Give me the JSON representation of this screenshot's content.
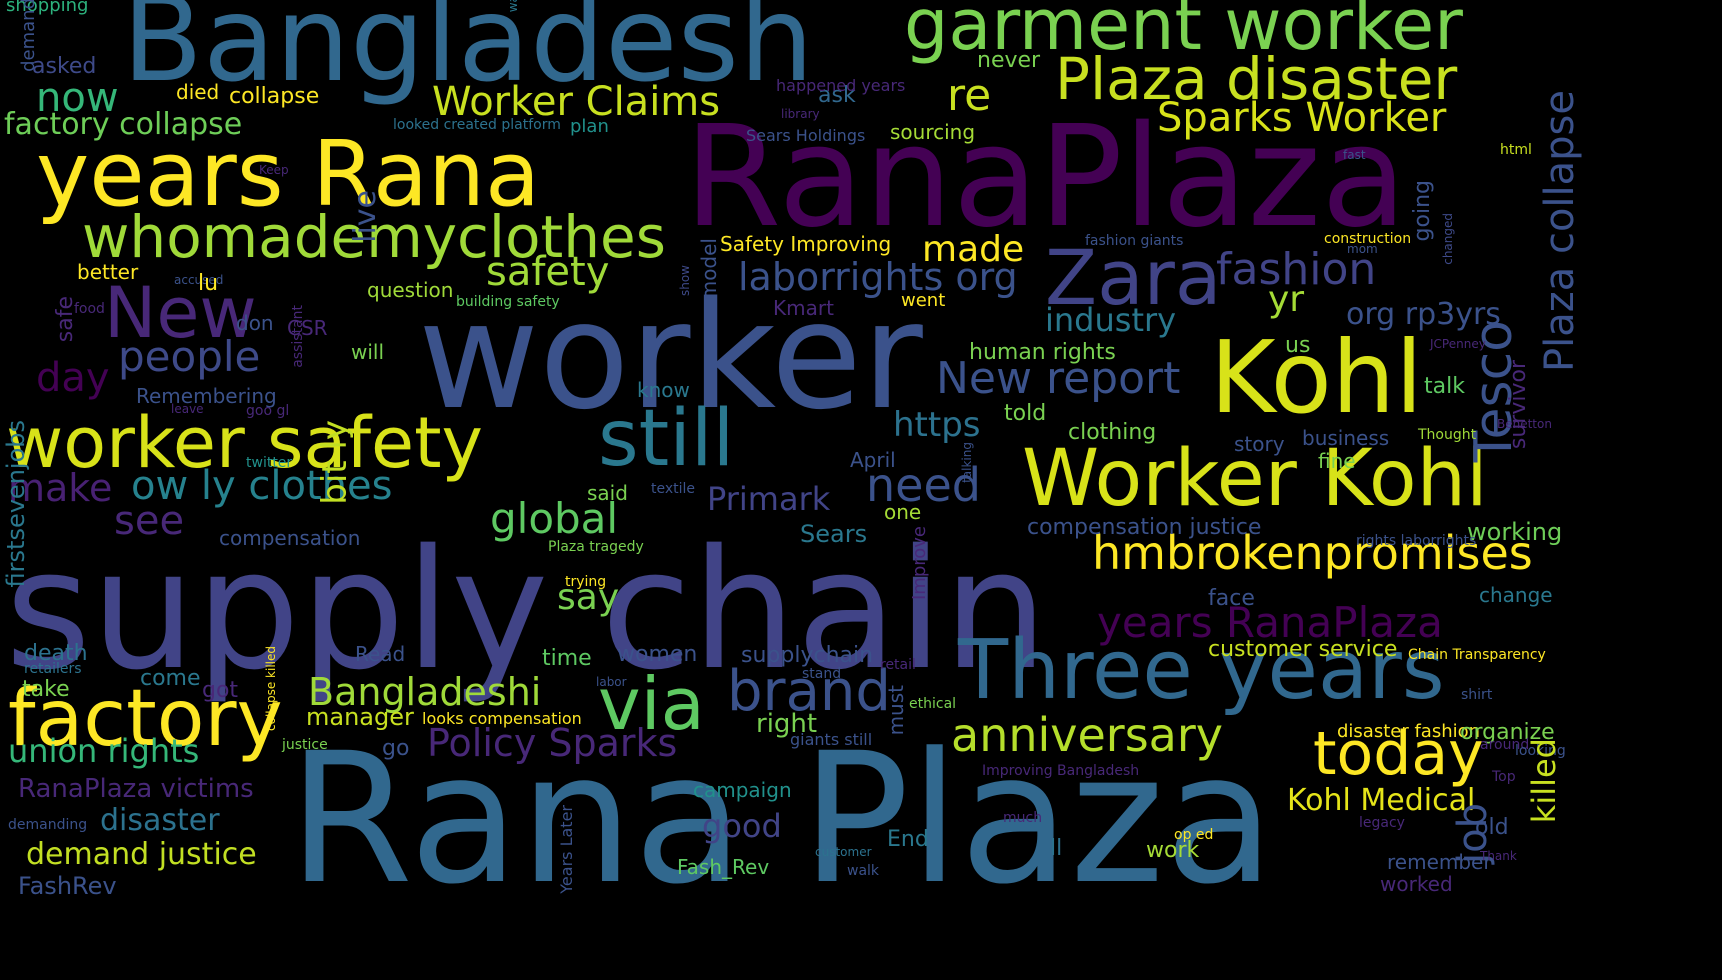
{
  "cloud": {
    "background": "#000000",
    "palette": [
      "#440154",
      "#3b528b",
      "#21908d",
      "#5dc963",
      "#fde725"
    ],
    "words": [
      {
        "text": "supply chain",
        "color": "#414487"
      },
      {
        "text": "worker",
        "color": "#3b528b"
      },
      {
        "text": "Rana Plaza",
        "color": "#31688e"
      },
      {
        "text": "RanaPlaza",
        "color": "#440154"
      },
      {
        "text": "Bangladesh",
        "color": "#31688e"
      },
      {
        "text": "years Rana",
        "color": "#fde725"
      },
      {
        "text": "Kohl",
        "color": "#d8e219"
      },
      {
        "text": "Worker Kohl",
        "color": "#d8e219"
      },
      {
        "text": "Three years",
        "color": "#31688e"
      },
      {
        "text": "garment worker",
        "color": "#7ad151"
      },
      {
        "text": "Plaza disaster",
        "color": "#c8e020"
      },
      {
        "text": "whomademyclothes",
        "color": "#a0da39"
      },
      {
        "text": "worker safety",
        "color": "#d8e219"
      },
      {
        "text": "still",
        "color": "#2a788e"
      },
      {
        "text": "Zara",
        "color": "#414487"
      },
      {
        "text": "New",
        "color": "#482878"
      },
      {
        "text": "factory",
        "color": "#fde725"
      },
      {
        "text": "via",
        "color": "#5ec962"
      },
      {
        "text": "hmbrokenpromises",
        "color": "#fde725"
      },
      {
        "text": "today",
        "color": "#fde725"
      },
      {
        "text": "anniversary",
        "color": "#b5de2b"
      },
      {
        "text": "brand",
        "color": "#3b528b"
      },
      {
        "text": "fashion",
        "color": "#414487"
      },
      {
        "text": "Tesco",
        "color": "#3b528b"
      },
      {
        "text": "Plaza collapse",
        "color": "#3b528b"
      },
      {
        "text": "Worker Claims",
        "color": "#c8e020"
      },
      {
        "text": "Sparks Worker",
        "color": "#d8e219"
      },
      {
        "text": "New report",
        "color": "#3b528b"
      },
      {
        "text": "laborrights org",
        "color": "#3b528b"
      },
      {
        "text": "safety",
        "color": "#a0da39"
      },
      {
        "text": "made",
        "color": "#fde725"
      },
      {
        "text": "people",
        "color": "#3e4a89"
      },
      {
        "text": "day",
        "color": "#440154"
      },
      {
        "text": "ow ly clothes",
        "color": "#26828e"
      },
      {
        "text": "make",
        "color": "#482173"
      },
      {
        "text": "see",
        "color": "#482878"
      },
      {
        "text": "global",
        "color": "#5ec962"
      },
      {
        "text": "need",
        "color": "#3b528b"
      },
      {
        "text": "Primark",
        "color": "#414487"
      },
      {
        "text": "industry",
        "color": "#2a788e"
      },
      {
        "text": "years RanaPlaza",
        "color": "#440154"
      },
      {
        "text": "Bangladeshi",
        "color": "#a0da39"
      },
      {
        "text": "Policy Sparks",
        "color": "#482878"
      },
      {
        "text": "union rights",
        "color": "#35b779"
      },
      {
        "text": "demand justice",
        "color": "#c2df23"
      },
      {
        "text": "RanaPlaza victims",
        "color": "#482878"
      },
      {
        "text": "disaster",
        "color": "#2c728e"
      },
      {
        "text": "good",
        "color": "#414487"
      },
      {
        "text": "Kohl Medical",
        "color": "#e5e419"
      },
      {
        "text": "now",
        "color": "#35b779"
      },
      {
        "text": "re",
        "color": "#c8e020"
      },
      {
        "text": "factory collapse",
        "color": "#6ece58"
      },
      {
        "text": "live",
        "color": "#3b528b"
      },
      {
        "text": "bit ly",
        "color": "#c2df23"
      },
      {
        "text": "firstsevenjobs",
        "color": "#2a788e"
      },
      {
        "text": "org rp3yrs",
        "color": "#3b528b"
      },
      {
        "text": "yr",
        "color": "#a5db36"
      },
      {
        "text": "https",
        "color": "#2c728e"
      },
      {
        "text": "say",
        "color": "#7ad151"
      },
      {
        "text": "manager",
        "color": "#c8e020"
      },
      {
        "text": "customer service",
        "color": "#c8e020"
      },
      {
        "text": "working",
        "color": "#6ece58"
      },
      {
        "text": "shopping",
        "color": "#2db27d"
      },
      {
        "text": "asked",
        "color": "#3e4a89"
      },
      {
        "text": "died",
        "color": "#fde725"
      },
      {
        "text": "collapse",
        "color": "#fde725"
      },
      {
        "text": "never",
        "color": "#7ad151"
      },
      {
        "text": "ask",
        "color": "#31688e"
      },
      {
        "text": "happened years",
        "color": "#482878"
      },
      {
        "text": "plan",
        "color": "#21918c"
      },
      {
        "text": "sourcing",
        "color": "#a5db36"
      },
      {
        "text": "Sears Holdings",
        "color": "#3b528b"
      },
      {
        "text": "looked created platform",
        "color": "#2c728e"
      },
      {
        "text": "library",
        "color": "#482878"
      },
      {
        "text": "fast",
        "color": "#3b528b"
      },
      {
        "text": "html",
        "color": "#c8e020"
      },
      {
        "text": "Keep",
        "color": "#482878"
      },
      {
        "text": "model",
        "color": "#3b528b"
      },
      {
        "text": "show",
        "color": "#3e4a89"
      },
      {
        "text": "Safety Improving",
        "color": "#fde725"
      },
      {
        "text": "fashion giants",
        "color": "#3b528b"
      },
      {
        "text": "construction",
        "color": "#fde725"
      },
      {
        "text": "mom",
        "color": "#3b528b"
      },
      {
        "text": "changed",
        "color": "#3e4a89"
      },
      {
        "text": "going",
        "color": "#3b528b"
      },
      {
        "text": "better",
        "color": "#fde725"
      },
      {
        "text": "accused",
        "color": "#3b528b"
      },
      {
        "text": "lu",
        "color": "#fde725"
      },
      {
        "text": "question",
        "color": "#a0da39"
      },
      {
        "text": "building safety",
        "color": "#5ec962"
      },
      {
        "text": "went",
        "color": "#fde725"
      },
      {
        "text": "Kmart",
        "color": "#482878"
      },
      {
        "text": "food",
        "color": "#482878"
      },
      {
        "text": "safe",
        "color": "#482878"
      },
      {
        "text": "don",
        "color": "#3b528b"
      },
      {
        "text": "assistant",
        "color": "#482878"
      },
      {
        "text": "CSR",
        "color": "#482878"
      },
      {
        "text": "will",
        "color": "#7ad151"
      },
      {
        "text": "human rights",
        "color": "#7ad151"
      },
      {
        "text": "us",
        "color": "#7ad151"
      },
      {
        "text": "JCPenney",
        "color": "#482878"
      },
      {
        "text": "talk",
        "color": "#5ec962"
      },
      {
        "text": "survivor",
        "color": "#482878"
      },
      {
        "text": "Remembering",
        "color": "#3b528b"
      },
      {
        "text": "know",
        "color": "#2a788e"
      },
      {
        "text": "leave",
        "color": "#482878"
      },
      {
        "text": "goo gl",
        "color": "#482878"
      },
      {
        "text": "told",
        "color": "#7ad151"
      },
      {
        "text": "clothing",
        "color": "#7ad151"
      },
      {
        "text": "story",
        "color": "#3b528b"
      },
      {
        "text": "business",
        "color": "#3b528b"
      },
      {
        "text": "Thought",
        "color": "#a0da39"
      },
      {
        "text": "Benetton",
        "color": "#482878"
      },
      {
        "text": "twitter",
        "color": "#21918c"
      },
      {
        "text": "April",
        "color": "#3b528b"
      },
      {
        "text": "talking",
        "color": "#3b528b"
      },
      {
        "text": "fine",
        "color": "#7ad151"
      },
      {
        "text": "said",
        "color": "#7ad151"
      },
      {
        "text": "textile",
        "color": "#3b528b"
      },
      {
        "text": "one",
        "color": "#a5db36"
      },
      {
        "text": "compensation justice",
        "color": "#3b528b"
      },
      {
        "text": "compensation",
        "color": "#3b528b"
      },
      {
        "text": "Sears",
        "color": "#2a788e"
      },
      {
        "text": "Improve",
        "color": "#482878"
      },
      {
        "text": "rights laborrights",
        "color": "#3b528b"
      },
      {
        "text": "Plaza tragedy",
        "color": "#7ad151"
      },
      {
        "text": "trying",
        "color": "#fde725"
      },
      {
        "text": "face",
        "color": "#3b528b"
      },
      {
        "text": "change",
        "color": "#2a788e"
      },
      {
        "text": "death",
        "color": "#2c728e"
      },
      {
        "text": "retailers",
        "color": "#2c728e"
      },
      {
        "text": "collapse killed",
        "color": "#fde725"
      },
      {
        "text": "Read",
        "color": "#3b528b"
      },
      {
        "text": "time",
        "color": "#5ec962"
      },
      {
        "text": "women",
        "color": "#3b528b"
      },
      {
        "text": "supplychain",
        "color": "#3b528b"
      },
      {
        "text": "retail",
        "color": "#482878"
      },
      {
        "text": "Chain Transparency",
        "color": "#fde725"
      },
      {
        "text": "take",
        "color": "#7ad151"
      },
      {
        "text": "come",
        "color": "#2a788e"
      },
      {
        "text": "got",
        "color": "#482878"
      },
      {
        "text": "labor",
        "color": "#3b528b"
      },
      {
        "text": "stand",
        "color": "#3b528b"
      },
      {
        "text": "shirt",
        "color": "#3b528b"
      },
      {
        "text": "ethical",
        "color": "#7ad151"
      },
      {
        "text": "must",
        "color": "#3b528b"
      },
      {
        "text": "looks compensation",
        "color": "#fde725"
      },
      {
        "text": "right",
        "color": "#7ad151"
      },
      {
        "text": "giants still",
        "color": "#3b528b"
      },
      {
        "text": "disaster fashion",
        "color": "#fde725"
      },
      {
        "text": "organize",
        "color": "#7ad151"
      },
      {
        "text": "around",
        "color": "#482878"
      },
      {
        "text": "looking",
        "color": "#3b528b"
      },
      {
        "text": "justice",
        "color": "#7ad151"
      },
      {
        "text": "go",
        "color": "#3b528b"
      },
      {
        "text": "campaign",
        "color": "#21918c"
      },
      {
        "text": "Improving Bangladesh",
        "color": "#482878"
      },
      {
        "text": "Top",
        "color": "#482878"
      },
      {
        "text": "killed",
        "color": "#c8e020"
      },
      {
        "text": "demanding",
        "color": "#3b528b"
      },
      {
        "text": "Years Later",
        "color": "#3b528b"
      },
      {
        "text": "much",
        "color": "#482878"
      },
      {
        "text": "End",
        "color": "#2a788e"
      },
      {
        "text": "op ed",
        "color": "#fde725"
      },
      {
        "text": "legacy",
        "color": "#482878"
      },
      {
        "text": "old",
        "color": "#3b528b"
      },
      {
        "text": "job",
        "color": "#3b528b"
      },
      {
        "text": "ll",
        "color": "#2c728e"
      },
      {
        "text": "customer",
        "color": "#2c728e"
      },
      {
        "text": "walk",
        "color": "#3b528b"
      },
      {
        "text": "work",
        "color": "#a5db36"
      },
      {
        "text": "remember",
        "color": "#3b528b"
      },
      {
        "text": "Thank",
        "color": "#482878"
      },
      {
        "text": "worked",
        "color": "#482878"
      },
      {
        "text": "Fash_Rev",
        "color": "#5ec962"
      },
      {
        "text": "FashRev",
        "color": "#3b528b"
      },
      {
        "text": "demand",
        "color": "#3b528b"
      },
      {
        "text": "way",
        "color": "#2a788e"
      }
    ]
  }
}
